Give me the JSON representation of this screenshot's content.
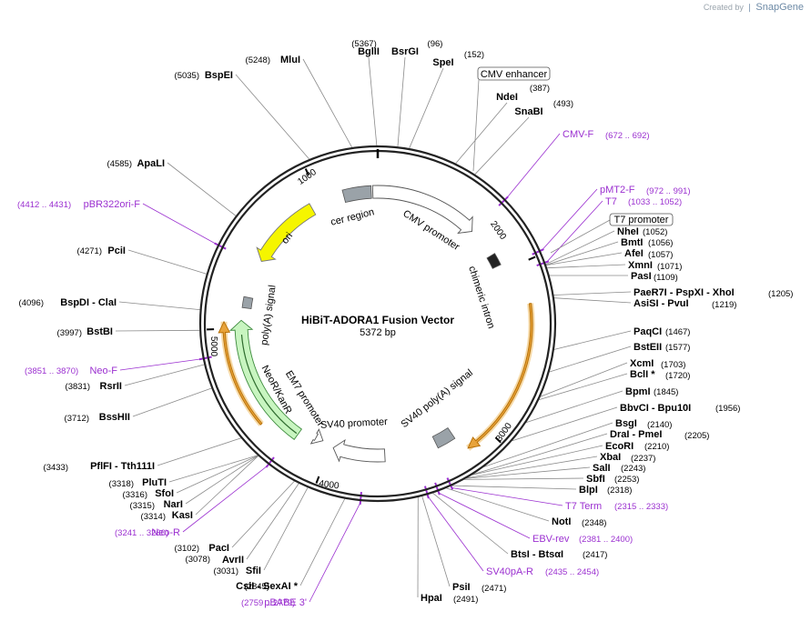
{
  "branding": {
    "created_by": "Created by",
    "brand": "SnapGene"
  },
  "plasmid": {
    "name": "HiBiT-ADORA1 Fusion Vector",
    "length_label": "5372 bp",
    "total_bp": 5372
  },
  "ticks": [
    {
      "bp": 1000,
      "label": "1000"
    },
    {
      "bp": 2000,
      "label": "2000"
    },
    {
      "bp": 3000,
      "label": "3000"
    },
    {
      "bp": 4000,
      "label": "4000"
    },
    {
      "bp": 5000,
      "label": "5000"
    }
  ],
  "sites": [
    {
      "name": "BglII",
      "pos": "(5367)",
      "bp": 5367
    },
    {
      "name": "BsrGI",
      "pos": "(96)",
      "bp": 96
    },
    {
      "name": "SpeI",
      "pos": "(152)",
      "bp": 152
    },
    {
      "name": "NdeI",
      "pos": "(387)",
      "bp": 387
    },
    {
      "name": "SnaBI",
      "pos": "(493)",
      "bp": 493
    },
    {
      "name": "NheI",
      "pos": "(1052)",
      "bp": 1052
    },
    {
      "name": "BmtI",
      "pos": "(1056)",
      "bp": 1056
    },
    {
      "name": "AfeI",
      "pos": "(1057)",
      "bp": 1057
    },
    {
      "name": "XmnI",
      "pos": "(1071)",
      "bp": 1071
    },
    {
      "name": "PasI",
      "pos": "(1109)",
      "bp": 1109
    },
    {
      "name": "PaeR7I - PspXI - XhoI",
      "pos": "(1205)",
      "bp": 1205
    },
    {
      "name": "AsiSI - PvuI",
      "pos": "(1219)",
      "bp": 1219
    },
    {
      "name": "PaqCI",
      "pos": "(1467)",
      "bp": 1467
    },
    {
      "name": "BstEII",
      "pos": "(1577)",
      "bp": 1577
    },
    {
      "name": "XcmI",
      "pos": "(1703)",
      "bp": 1703
    },
    {
      "name": "BclI *",
      "pos": "(1720)",
      "bp": 1720
    },
    {
      "name": "BpmI",
      "pos": "(1845)",
      "bp": 1845
    },
    {
      "name": "BbvCI - Bpu10I",
      "pos": "(1956)",
      "bp": 1956
    },
    {
      "name": "BsgI",
      "pos": "(2140)",
      "bp": 2140
    },
    {
      "name": "DraI - PmeI",
      "pos": "(2205)",
      "bp": 2205
    },
    {
      "name": "EcoRI",
      "pos": "(2210)",
      "bp": 2210
    },
    {
      "name": "XbaI",
      "pos": "(2237)",
      "bp": 2237
    },
    {
      "name": "SalI",
      "pos": "(2243)",
      "bp": 2243
    },
    {
      "name": "SbfI",
      "pos": "(2253)",
      "bp": 2253
    },
    {
      "name": "BlpI",
      "pos": "(2318)",
      "bp": 2318
    },
    {
      "name": "NotI",
      "pos": "(2348)",
      "bp": 2348
    },
    {
      "name": "BtsI - BtsαI",
      "pos": "(2417)",
      "bp": 2417
    },
    {
      "name": "PsiI",
      "pos": "(2471)",
      "bp": 2471
    },
    {
      "name": "HpaI",
      "pos": "(2491)",
      "bp": 2491
    },
    {
      "name": "CsiI - SexAI *",
      "pos": "(2845)",
      "bp": 2845
    },
    {
      "name": "SfiI",
      "pos": "(3031)",
      "bp": 3031
    },
    {
      "name": "AvrII",
      "pos": "(3078)",
      "bp": 3078
    },
    {
      "name": "PacI",
      "pos": "(3102)",
      "bp": 3102
    },
    {
      "name": "KasI",
      "pos": "(3314)",
      "bp": 3314
    },
    {
      "name": "NarI",
      "pos": "(3315)",
      "bp": 3315
    },
    {
      "name": "SfoI",
      "pos": "(3316)",
      "bp": 3316
    },
    {
      "name": "PluTI",
      "pos": "(3318)",
      "bp": 3318
    },
    {
      "name": "PflFI - Tth111I",
      "pos": "(3433)",
      "bp": 3433
    },
    {
      "name": "BssHII",
      "pos": "(3712)",
      "bp": 3712
    },
    {
      "name": "RsrII",
      "pos": "(3831)",
      "bp": 3831
    },
    {
      "name": "BstBI",
      "pos": "(3997)",
      "bp": 3997
    },
    {
      "name": "BspDI - ClaI",
      "pos": "(4096)",
      "bp": 4096
    },
    {
      "name": "PciI",
      "pos": "(4271)",
      "bp": 4271
    },
    {
      "name": "ApaLI",
      "pos": "(4585)",
      "bp": 4585
    },
    {
      "name": "BspEI",
      "pos": "(5035)",
      "bp": 5035
    },
    {
      "name": "MluI",
      "pos": "(5248)",
      "bp": 5248
    }
  ],
  "primers": [
    {
      "name": "CMV-F",
      "pos": "(672 .. 692)",
      "bp": 682
    },
    {
      "name": "pMT2-F",
      "pos": "(972 .. 991)",
      "bp": 982
    },
    {
      "name": "T7",
      "pos": "(1033 .. 1052)",
      "bp": 1043
    },
    {
      "name": "T7 Term",
      "pos": "(2315 .. 2333)",
      "bp": 2324
    },
    {
      "name": "EBV-rev",
      "pos": "(2381 .. 2400)",
      "bp": 2390
    },
    {
      "name": "SV40pA-R",
      "pos": "(2435 .. 2454)",
      "bp": 2444
    },
    {
      "name": "pBABE 3'",
      "pos": "(2759 .. 2779)",
      "bp": 2769
    },
    {
      "name": "Neo-R",
      "pos": "(3241 .. 3260)",
      "bp": 3250
    },
    {
      "name": "Neo-F",
      "pos": "(3851 .. 3870)",
      "bp": 3860
    },
    {
      "name": "pBR322ori-F",
      "pos": "(4412 .. 4431)",
      "bp": 4421
    }
  ],
  "boxed_features": [
    {
      "label": "CMV enhancer"
    },
    {
      "label": "T7 promoter"
    }
  ],
  "features": {
    "cmv_promoter": "CMV promoter",
    "chimeric_intron": "chimeric intron",
    "sv40_polya": "SV40 poly(A) signal",
    "sv40_promoter": "SV40 promoter",
    "em7_promoter": "EM7 promoter",
    "neo": "NeoR/KanR",
    "polya": "poly(A) signal",
    "ori": "ori",
    "cer": "cer region"
  },
  "colors": {
    "primer": "#9b30d0",
    "orange_arc": "#e8a33a",
    "ori": "#f5f500",
    "neo": "#c8f5c0",
    "grey_feature": "#9aa2a8",
    "leader": "#8a8a8a"
  }
}
